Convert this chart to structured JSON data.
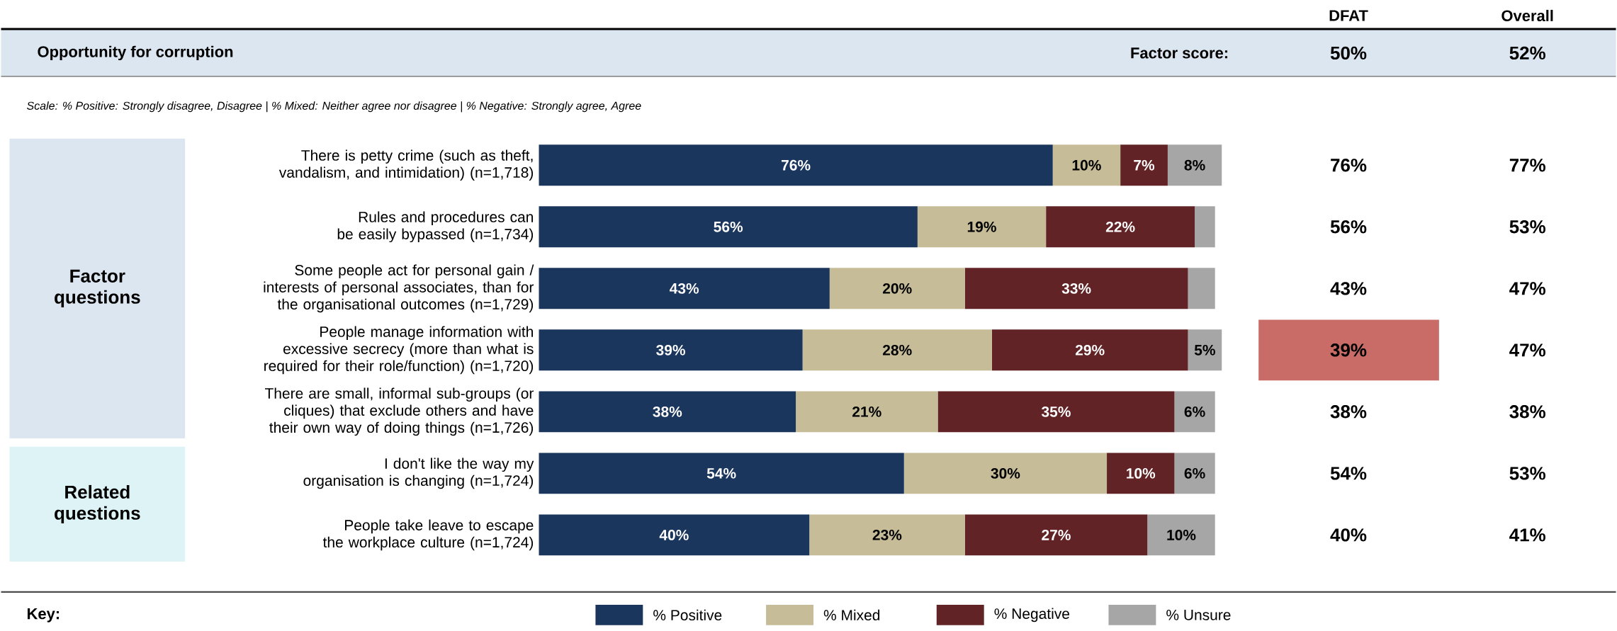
{
  "chart_data": {
    "type": "bar",
    "orientation": "horizontal",
    "stacked": true,
    "title": "Opportunity for corruption",
    "subtitle": "Scale: % Positive: Strongly disagree, Disagree | % Mixed: Neither agree nor disagree | % Negative: Strongly agree, Agree",
    "categories": [
      "There is petty crime (such as theft, vandalism, and intimidation) (n=1,718)",
      "Rules and procedures can be easily bypassed (n=1,734)",
      "Some people act for personal gain / interests of personal associates, than for the organisational outcomes (n=1,729)",
      "People manage information with excessive secrecy (more than what is required for their role/function) (n=1,720)",
      "There are small, informal sub-groups (or cliques) that exclude others and have their own way of doing things (n=1,726)",
      "I don't like the way my organisation is changing (n=1,724)",
      "People take leave to escape the workplace culture (n=1,724)"
    ],
    "series": [
      {
        "name": "% Positive",
        "color": "#1b365d",
        "values": [
          76,
          56,
          43,
          39,
          38,
          54,
          40
        ],
        "value_labels": [
          "76%",
          "56%",
          "43%",
          "39%",
          "38%",
          "54%",
          "40%"
        ]
      },
      {
        "name": "% Mixed",
        "color": "#c6bc98",
        "values": [
          10,
          19,
          20,
          28,
          21,
          30,
          23
        ],
        "value_labels": [
          "10%",
          "19%",
          "20%",
          "28%",
          "21%",
          "30%",
          "23%"
        ]
      },
      {
        "name": "% Negative",
        "color": "#612325",
        "values": [
          7,
          22,
          33,
          29,
          35,
          10,
          27
        ],
        "value_labels": [
          "7%",
          "22%",
          "33%",
          "29%",
          "35%",
          "10%",
          "27%"
        ]
      },
      {
        "name": "% Unsure",
        "color": "#a6a6a6",
        "values": [
          8,
          3,
          4,
          5,
          6,
          6,
          10
        ],
        "value_labels": [
          "8%",
          null,
          null,
          "5%",
          "6%",
          "6%",
          "10%"
        ]
      }
    ],
    "legend": "bottom",
    "legend_title": "Key:",
    "annotations": [
      "DFAT",
      "Overall",
      "Factor score:",
      "50%",
      "52%",
      "76%",
      "56%",
      "43%",
      "39%",
      "38%",
      "54%",
      "40%",
      "77%",
      "53%",
      "47%",
      "47%",
      "38%",
      "53%",
      "41%",
      "Factor questions",
      "Related questions"
    ]
  }
}
